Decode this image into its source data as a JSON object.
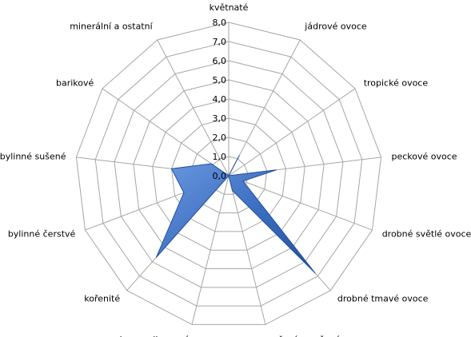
{
  "chart_data": {
    "type": "radar",
    "title": "",
    "categories": [
      "květnaté",
      "jádrové ovoce",
      "tropické ovoce",
      "peckové ovoce",
      "drobné světlé ovoce",
      "drobné tmavé ovoce",
      "vařené a sušené ovoce",
      "karamelizované",
      "kořenité",
      "bylinné čerstvé",
      "bylinné sušené",
      "barikové",
      "minerální a ostatní"
    ],
    "series": [
      {
        "values": [
          0,
          1.2,
          0,
          2.5,
          0.8,
          6.8,
          0.8,
          0,
          5.7,
          2.5,
          3.0,
          1.1,
          0
        ],
        "color": "#3b6ec2"
      }
    ],
    "rlim": [
      0,
      8
    ],
    "ticks": [
      "0,0",
      "1,0",
      "2,0",
      "3,0",
      "4,0",
      "5,0",
      "6,0",
      "7,0",
      "8,0"
    ],
    "grid": true,
    "legend": "none",
    "colors": {
      "grid": "#a6a6a6",
      "fill": "#3b6ec2",
      "fill_dark": "#23509c",
      "fill_light": "#6f9be0"
    }
  }
}
